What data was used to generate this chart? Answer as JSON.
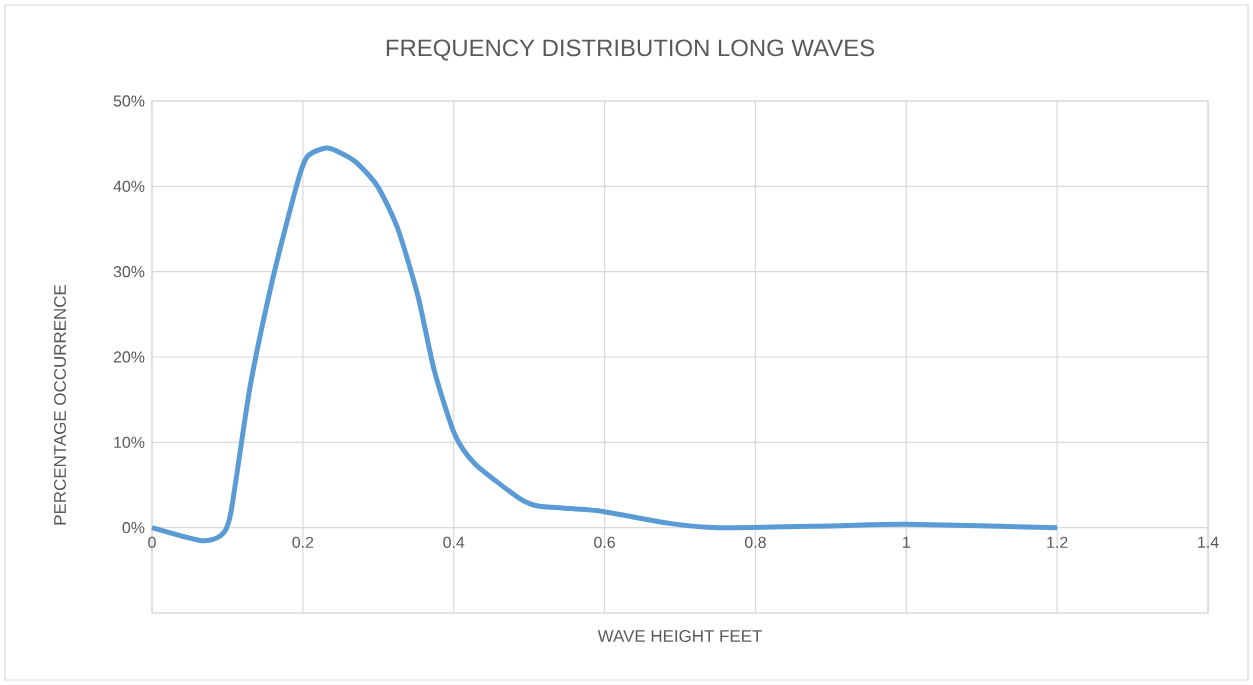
{
  "chart_data": {
    "type": "line",
    "title": "FREQUENCY DISTRIBUTION LONG WAVES",
    "xlabel": "WAVE HEIGHT FEET",
    "ylabel": "PERCENTAGE OCCURRENCE",
    "series": [
      {
        "color": "#5b9bd5",
        "x": [
          0,
          0.064,
          0.09,
          0.104,
          0.13,
          0.161,
          0.193,
          0.206,
          0.233,
          0.268,
          0.299,
          0.326,
          0.353,
          0.374,
          0.401,
          0.428,
          0.486,
          0.514,
          0.589,
          0.686,
          0.75,
          0.9,
          1.0,
          1.2
        ],
        "values": [
          0,
          -1.5,
          -1,
          1.5,
          16.5,
          29.5,
          40.5,
          43.5,
          44.5,
          43,
          40,
          35,
          27,
          18.5,
          11,
          7.5,
          3.5,
          2.5,
          2,
          0.5,
          0,
          0.2,
          0.4,
          0
        ]
      }
    ],
    "xlim": [
      0,
      1.4
    ],
    "ylim": [
      -10,
      50
    ],
    "xticks": [
      0,
      0.2,
      0.4,
      0.6,
      0.8,
      1,
      1.2,
      1.4
    ],
    "yticks": [
      {
        "value": -10,
        "label": null
      },
      {
        "value": 0,
        "label": "0%"
      },
      {
        "value": 10,
        "label": "10%"
      },
      {
        "value": 20,
        "label": "20%"
      },
      {
        "value": 30,
        "label": "30%"
      },
      {
        "value": 40,
        "label": "40%"
      },
      {
        "value": 50,
        "label": "50%"
      }
    ],
    "grid": true
  }
}
